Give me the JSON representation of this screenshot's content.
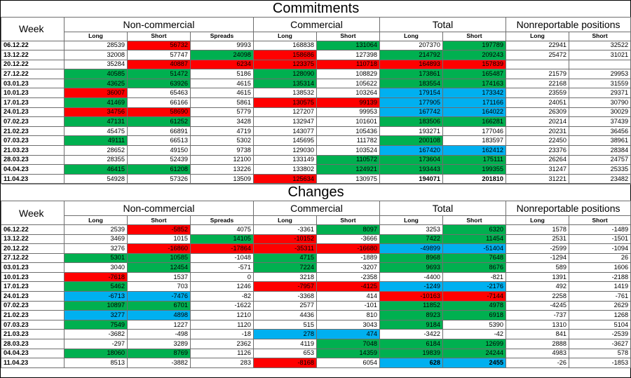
{
  "commitments": {
    "title": "Commitments",
    "week_label": "Week",
    "groups": [
      "Non-commercial",
      "Commercial",
      "Total",
      "Nonreportable positions"
    ],
    "subheaders": [
      "Long",
      "Short",
      "Spreads",
      "Long",
      "Short",
      "Long",
      "Short",
      "Long",
      "Short"
    ],
    "rows": [
      {
        "date": "06.12.22",
        "nc_long": "28539",
        "nc_short": "56732",
        "spreads": "9993",
        "c_long": "168838",
        "c_short": "131064",
        "t_long": "207370",
        "t_short": "197789",
        "nr_long": "22941",
        "nr_short": "32522"
      },
      {
        "date": "13.12.22",
        "nc_long": "32008",
        "nc_short": "57747",
        "spreads": "24098",
        "c_long": "158686",
        "c_short": "127398",
        "t_long": "214792",
        "t_short": "209243",
        "nr_long": "25472",
        "nr_short": "31021"
      },
      {
        "date": "20.12.22",
        "nc_long": "35284",
        "nc_short": "40887",
        "spreads": "6234",
        "c_long": "123375",
        "c_short": "110718",
        "t_long": "164893",
        "t_short": "157839",
        "nr_long": "",
        "nr_short": ""
      },
      {
        "date": "27.12.22",
        "nc_long": "40585",
        "nc_short": "51472",
        "spreads": "5186",
        "c_long": "128090",
        "c_short": "108829",
        "t_long": "173861",
        "t_short": "165487",
        "nr_long": "21579",
        "nr_short": "29953"
      },
      {
        "date": "03.01.23",
        "nc_long": "43625",
        "nc_short": "63926",
        "spreads": "4615",
        "c_long": "135314",
        "c_short": "105622",
        "t_long": "183554",
        "t_short": "174163",
        "nr_long": "22168",
        "nr_short": "31559"
      },
      {
        "date": "10.01.23",
        "nc_long": "36007",
        "nc_short": "65463",
        "spreads": "4615",
        "c_long": "138532",
        "c_short": "103264",
        "t_long": "179154",
        "t_short": "173342",
        "nr_long": "23559",
        "nr_short": "29371"
      },
      {
        "date": "17.01.23",
        "nc_long": "41469",
        "nc_short": "66166",
        "spreads": "5861",
        "c_long": "130575",
        "c_short": "99139",
        "t_long": "177905",
        "t_short": "171166",
        "nr_long": "24051",
        "nr_short": "30790"
      },
      {
        "date": "24.01.23",
        "nc_long": "34756",
        "nc_short": "58690",
        "spreads": "5779",
        "c_long": "127207",
        "c_short": "99953",
        "t_long": "167742",
        "t_short": "164022",
        "nr_long": "26309",
        "nr_short": "30029"
      },
      {
        "date": "07.02.23",
        "nc_long": "47131",
        "nc_short": "61252",
        "spreads": "3428",
        "c_long": "132947",
        "c_short": "101601",
        "t_long": "183506",
        "t_short": "166281",
        "nr_long": "20214",
        "nr_short": "37439"
      },
      {
        "date": "21.02.23",
        "nc_long": "45475",
        "nc_short": "66891",
        "spreads": "4719",
        "c_long": "143077",
        "c_short": "105436",
        "t_long": "193271",
        "t_short": "177046",
        "nr_long": "20231",
        "nr_short": "36456"
      },
      {
        "date": "07.03.23",
        "nc_long": "49111",
        "nc_short": "66513",
        "spreads": "5302",
        "c_long": "145695",
        "c_short": "111782",
        "t_long": "200108",
        "t_short": "183597",
        "nr_long": "22450",
        "nr_short": "38961"
      },
      {
        "date": "21.03.23",
        "nc_long": "28652",
        "nc_short": "49150",
        "spreads": "9738",
        "c_long": "129030",
        "c_short": "103524",
        "t_long": "167420",
        "t_short": "162412",
        "nr_long": "23376",
        "nr_short": "28384"
      },
      {
        "date": "28.03.23",
        "nc_long": "28355",
        "nc_short": "52439",
        "spreads": "12100",
        "c_long": "133149",
        "c_short": "110572",
        "t_long": "173604",
        "t_short": "175111",
        "nr_long": "26264",
        "nr_short": "24757"
      },
      {
        "date": "04.04.23",
        "nc_long": "46415",
        "nc_short": "61208",
        "spreads": "13226",
        "c_long": "133802",
        "c_short": "124921",
        "t_long": "193443",
        "t_short": "199355",
        "nr_long": "31247",
        "nr_short": "25335"
      },
      {
        "date": "11.04.23",
        "nc_long": "54928",
        "nc_short": "57326",
        "spreads": "13509",
        "c_long": "125634",
        "c_short": "130975",
        "t_long": "194071",
        "t_short": "201810",
        "nr_long": "31221",
        "nr_short": "23482"
      }
    ]
  },
  "changes": {
    "title": "Changes",
    "week_label": "Week",
    "groups": [
      "Non-commercial",
      "Commercial",
      "Total",
      "Nonreportable positions"
    ],
    "subheaders": [
      "Long",
      "Short",
      "Spreads",
      "Long",
      "Short",
      "Long",
      "Short",
      "Long",
      "Short"
    ],
    "rows": [
      {
        "date": "06.12.22",
        "nc_long": "2539",
        "nc_short": "-5852",
        "spreads": "4075",
        "c_long": "-3361",
        "c_short": "8097",
        "t_long": "3253",
        "t_short": "6320",
        "nr_long": "1578",
        "nr_short": "-1489"
      },
      {
        "date": "13.12.22",
        "nc_long": "3469",
        "nc_short": "1015",
        "spreads": "14105",
        "c_long": "-10152",
        "c_short": "-3666",
        "t_long": "7422",
        "t_short": "11454",
        "nr_long": "2531",
        "nr_short": "-1501"
      },
      {
        "date": "20.12.22",
        "nc_long": "3276",
        "nc_short": "-16860",
        "spreads": "-17864",
        "c_long": "-35311",
        "c_short": "-16680",
        "t_long": "-49899",
        "t_short": "-51404",
        "nr_long": "-2599",
        "nr_short": "-1094"
      },
      {
        "date": "27.12.22",
        "nc_long": "5301",
        "nc_short": "10585",
        "spreads": "-1048",
        "c_long": "4715",
        "c_short": "-1889",
        "t_long": "8968",
        "t_short": "7648",
        "nr_long": "-1294",
        "nr_short": "26"
      },
      {
        "date": "03.01.23",
        "nc_long": "3040",
        "nc_short": "12454",
        "spreads": "-571",
        "c_long": "7224",
        "c_short": "-3207",
        "t_long": "9693",
        "t_short": "8676",
        "nr_long": "589",
        "nr_short": "1606"
      },
      {
        "date": "10.01.23",
        "nc_long": "-7618",
        "nc_short": "1537",
        "spreads": "0",
        "c_long": "3218",
        "c_short": "-2358",
        "t_long": "-4400",
        "t_short": "-821",
        "nr_long": "1391",
        "nr_short": "-2188"
      },
      {
        "date": "17.01.23",
        "nc_long": "5462",
        "nc_short": "703",
        "spreads": "1246",
        "c_long": "-7957",
        "c_short": "-4125",
        "t_long": "-1249",
        "t_short": "-2176",
        "nr_long": "492",
        "nr_short": "1419"
      },
      {
        "date": "24.01.23",
        "nc_long": "-6713",
        "nc_short": "-7476",
        "spreads": "-82",
        "c_long": "-3368",
        "c_short": "414",
        "t_long": "-10163",
        "t_short": "-7144",
        "nr_long": "2258",
        "nr_short": "-761"
      },
      {
        "date": "07.02.23",
        "nc_long": "10897",
        "nc_short": "6701",
        "spreads": "-1622",
        "c_long": "2577",
        "c_short": "-101",
        "t_long": "11852",
        "t_short": "4978",
        "nr_long": "-4245",
        "nr_short": "2629"
      },
      {
        "date": "21.02.23",
        "nc_long": "3277",
        "nc_short": "4898",
        "spreads": "1210",
        "c_long": "4436",
        "c_short": "810",
        "t_long": "8923",
        "t_short": "6918",
        "nr_long": "-737",
        "nr_short": "1268"
      },
      {
        "date": "07.03.23",
        "nc_long": "7549",
        "nc_short": "1227",
        "spreads": "1120",
        "c_long": "515",
        "c_short": "3043",
        "t_long": "9184",
        "t_short": "5390",
        "nr_long": "1310",
        "nr_short": "5104"
      },
      {
        "date": "21.03.23",
        "nc_long": "-3682",
        "nc_short": "-498",
        "spreads": "-18",
        "c_long": "278",
        "c_short": "474",
        "t_long": "-3422",
        "t_short": "-42",
        "nr_long": "841",
        "nr_short": "-2539"
      },
      {
        "date": "28.03.23",
        "nc_long": "-297",
        "nc_short": "3289",
        "spreads": "2362",
        "c_long": "4119",
        "c_short": "7048",
        "t_long": "6184",
        "t_short": "12699",
        "nr_long": "2888",
        "nr_short": "-3627"
      },
      {
        "date": "04.04.23",
        "nc_long": "18060",
        "nc_short": "8769",
        "spreads": "1126",
        "c_long": "653",
        "c_short": "14359",
        "t_long": "19839",
        "t_short": "24244",
        "nr_long": "4983",
        "nr_short": "578"
      },
      {
        "date": "11.04.23",
        "nc_long": "8513",
        "nc_short": "-3882",
        "spreads": "283",
        "c_long": "-8168",
        "c_short": "6054",
        "t_long": "628",
        "t_short": "2455",
        "nr_long": "-26",
        "nr_short": "-1853"
      }
    ]
  },
  "cell_colors": {
    "green": "#00b050",
    "red": "#ff0000",
    "blue": "#00b0f0"
  }
}
